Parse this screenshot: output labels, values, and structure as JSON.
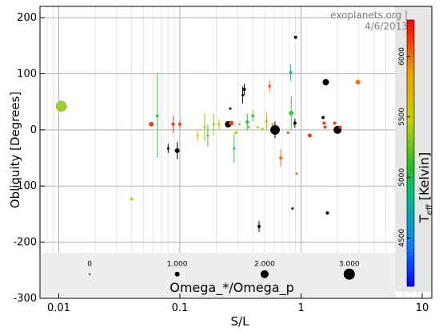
{
  "credit": "exoplanets.org | 4/6/2013",
  "chart_data": {
    "type": "scatter",
    "xlabel": "S/L",
    "ylabel": "Obliquity [Degrees]",
    "xscale": "log",
    "xlim": [
      0.007,
      12
    ],
    "ylim": [
      -300,
      220
    ],
    "xticks": [
      {
        "value": 0.01,
        "label": "0.01"
      },
      {
        "value": 0.1,
        "label": "0.1"
      },
      {
        "value": 1,
        "label": "1"
      },
      {
        "value": 10,
        "label": "10"
      }
    ],
    "yticks": [
      {
        "value": 200,
        "label": "200"
      },
      {
        "value": 100,
        "label": "100"
      },
      {
        "value": 0,
        "label": "0"
      },
      {
        "value": -100,
        "label": "-100"
      },
      {
        "value": -200,
        "label": "-200"
      },
      {
        "value": -300,
        "label": "-300"
      }
    ],
    "grid": true,
    "colorbar": {
      "label": "T_eff [Kelvin]",
      "label_main": "T",
      "label_sub": "eff",
      "label_rest": " [Kelvin]",
      "range": [
        4100,
        6300
      ],
      "ticks": [
        {
          "value": 6000,
          "label": "6000"
        },
        {
          "value": 5500,
          "label": "5500"
        },
        {
          "value": 5000,
          "label": "5000"
        },
        {
          "value": 4500,
          "label": "4500"
        }
      ]
    },
    "size_legend": {
      "title": "Omega_*/Omega_p",
      "entries": [
        {
          "label": "0",
          "x": 0.018,
          "r": 1
        },
        {
          "label": "1.000",
          "x": 0.095,
          "r": 3
        },
        {
          "label": "2.000",
          "x": 0.5,
          "r": 5
        },
        {
          "label": "3.000",
          "x": 2.5,
          "r": 7
        }
      ],
      "y": -257
    },
    "points": [
      {
        "x": 0.0105,
        "y": 42,
        "r": 7,
        "c": "#9acd32"
      },
      {
        "x": 0.04,
        "y": -123,
        "r": 2,
        "c": "#c8d000"
      },
      {
        "x": 0.058,
        "y": 10,
        "r": 3,
        "c": "#e84018"
      },
      {
        "x": 0.065,
        "y": 25,
        "r": 2,
        "c": "#40c840",
        "err": 75
      },
      {
        "x": 0.08,
        "y": -33,
        "r": 1.5,
        "c": "#000000",
        "err": 8
      },
      {
        "x": 0.088,
        "y": 10,
        "r": 2,
        "c": "#e84018",
        "err": 15
      },
      {
        "x": 0.095,
        "y": -37,
        "r": 3,
        "c": "#000000",
        "err": 15
      },
      {
        "x": 0.1,
        "y": 10,
        "r": 2,
        "c": "#e84018",
        "err": 8
      },
      {
        "x": 0.14,
        "y": -10,
        "r": 1.5,
        "c": "#c8c800",
        "err": 10
      },
      {
        "x": 0.16,
        "y": 5,
        "r": 1.5,
        "c": "#a0d000",
        "err": 25
      },
      {
        "x": 0.17,
        "y": -10,
        "r": 1.5,
        "c": "#40c840",
        "err": 20
      },
      {
        "x": 0.19,
        "y": 10,
        "r": 1.5,
        "c": "#80d000",
        "err": 20
      },
      {
        "x": 0.21,
        "y": 10,
        "r": 1.5,
        "c": "#c8c800",
        "err": 10
      },
      {
        "x": 0.25,
        "y": 10,
        "r": 4,
        "c": "#000000"
      },
      {
        "x": 0.26,
        "y": 38,
        "r": 1.5,
        "c": "#000000"
      },
      {
        "x": 0.265,
        "y": 12,
        "r": 3,
        "c": "#e84018"
      },
      {
        "x": 0.28,
        "y": -33,
        "r": 1.5,
        "c": "#20c060",
        "err": 25
      },
      {
        "x": 0.29,
        "y": -5,
        "r": 2,
        "c": "#c8c800"
      },
      {
        "x": 0.31,
        "y": 10,
        "r": 1.5,
        "c": "#a0d000"
      },
      {
        "x": 0.33,
        "y": 62,
        "r": 1.5,
        "c": "#000000",
        "err": 15
      },
      {
        "x": 0.34,
        "y": 72,
        "r": 2,
        "c": "#000000",
        "err": 10
      },
      {
        "x": 0.36,
        "y": 14,
        "r": 2,
        "c": "#20c040",
        "err": 15
      },
      {
        "x": 0.37,
        "y": 5,
        "r": 1.5,
        "c": "#80d000"
      },
      {
        "x": 0.4,
        "y": 25,
        "r": 2,
        "c": "#40c840",
        "err": 10
      },
      {
        "x": 0.44,
        "y": 5,
        "r": 1.5,
        "c": "#c8c800"
      },
      {
        "x": 0.45,
        "y": -172,
        "r": 2,
        "c": "#000000",
        "err": 10
      },
      {
        "x": 0.48,
        "y": 2,
        "r": 1.5,
        "c": "#a0d000"
      },
      {
        "x": 0.52,
        "y": 15,
        "r": 1.5,
        "c": "#e8a000",
        "err": 15
      },
      {
        "x": 0.55,
        "y": 78,
        "r": 2,
        "c": "#e87020",
        "err": 10
      },
      {
        "x": 0.58,
        "y": 10,
        "r": 1.5,
        "c": "#e8a000"
      },
      {
        "x": 0.61,
        "y": 0,
        "r": 6,
        "c": "#000000",
        "err": 15
      },
      {
        "x": 0.68,
        "y": -50,
        "r": 2,
        "c": "#e87020",
        "err": 15
      },
      {
        "x": 0.78,
        "y": -5,
        "r": 1.5,
        "c": "#e84018"
      },
      {
        "x": 0.82,
        "y": 102,
        "r": 2,
        "c": "#20c080",
        "err": 15
      },
      {
        "x": 0.83,
        "y": 30,
        "r": 3,
        "c": "#40c840",
        "err": 30
      },
      {
        "x": 0.85,
        "y": -140,
        "r": 1.5,
        "c": "#000000"
      },
      {
        "x": 0.9,
        "y": 165,
        "r": 2,
        "c": "#000000"
      },
      {
        "x": 0.92,
        "y": -78,
        "r": 1.5,
        "c": "#e87020"
      },
      {
        "x": 0.89,
        "y": 12,
        "r": 2,
        "c": "#000000",
        "err": 8
      },
      {
        "x": 1.18,
        "y": -10,
        "r": 2.5,
        "c": "#e84018"
      },
      {
        "x": 1.52,
        "y": 22,
        "r": 2,
        "c": "#000000"
      },
      {
        "x": 1.55,
        "y": 12,
        "r": 2,
        "c": "#e84018"
      },
      {
        "x": 1.58,
        "y": 5,
        "r": 2,
        "c": "#e84018"
      },
      {
        "x": 1.6,
        "y": 85,
        "r": 4,
        "c": "#000000"
      },
      {
        "x": 1.65,
        "y": -148,
        "r": 2,
        "c": "#000000"
      },
      {
        "x": 1.9,
        "y": 12,
        "r": 2,
        "c": "#e84018"
      },
      {
        "x": 2.0,
        "y": 0,
        "r": 5,
        "c": "#000000"
      },
      {
        "x": 2.1,
        "y": 5,
        "r": 2,
        "c": "#e84018"
      },
      {
        "x": 2.95,
        "y": 85,
        "r": 3,
        "c": "#e87020"
      }
    ]
  }
}
